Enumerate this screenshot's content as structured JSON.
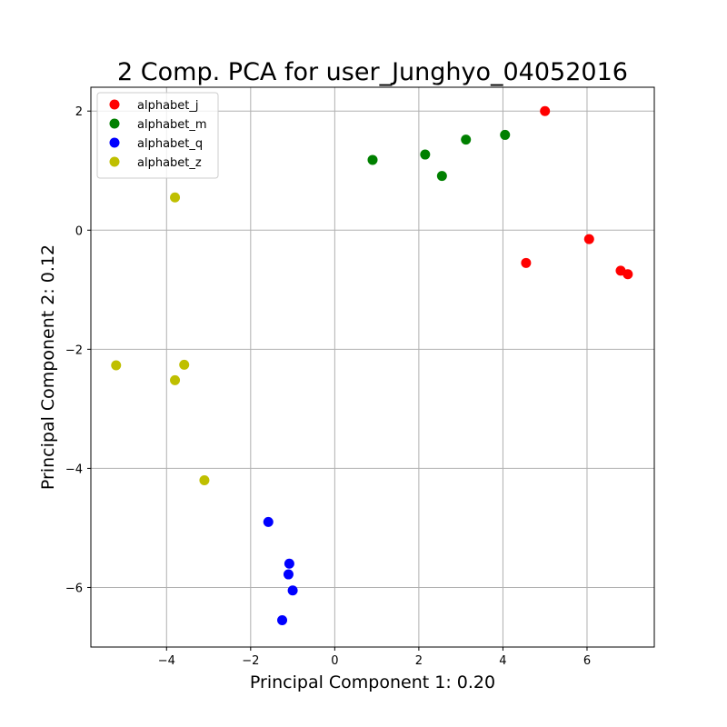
{
  "chart_data": {
    "type": "scatter",
    "title": "2 Comp. PCA for user_Junghyo_04052016",
    "xlabel": "Principal Component 1: 0.20",
    "ylabel": "Principal Component 2: 0.12",
    "xlim": [
      -5.8,
      7.6
    ],
    "ylim": [
      -7.0,
      2.4
    ],
    "xticks": [
      -4,
      -2,
      0,
      2,
      4,
      6
    ],
    "yticks": [
      -6,
      -4,
      -2,
      0,
      2
    ],
    "grid": true,
    "legend_position": "top-left",
    "series": [
      {
        "name": "alphabet_j",
        "color": "#ff0000",
        "points": [
          [
            5.0,
            2.0
          ],
          [
            6.05,
            -0.15
          ],
          [
            4.55,
            -0.55
          ],
          [
            6.8,
            -0.68
          ],
          [
            6.97,
            -0.74
          ]
        ]
      },
      {
        "name": "alphabet_m",
        "color": "#008000",
        "points": [
          [
            0.9,
            1.18
          ],
          [
            2.15,
            1.27
          ],
          [
            2.55,
            0.91
          ],
          [
            3.12,
            1.52
          ],
          [
            4.05,
            1.6
          ]
        ]
      },
      {
        "name": "alphabet_q",
        "color": "#0000ff",
        "points": [
          [
            -1.58,
            -4.9
          ],
          [
            -1.08,
            -5.6
          ],
          [
            -1.1,
            -5.78
          ],
          [
            -1.0,
            -6.05
          ],
          [
            -1.25,
            -6.55
          ]
        ]
      },
      {
        "name": "alphabet_z",
        "color": "#bfbf00",
        "points": [
          [
            -3.8,
            0.55
          ],
          [
            -5.2,
            -2.27
          ],
          [
            -3.58,
            -2.26
          ],
          [
            -3.8,
            -2.52
          ],
          [
            -3.1,
            -4.2
          ]
        ]
      }
    ]
  }
}
